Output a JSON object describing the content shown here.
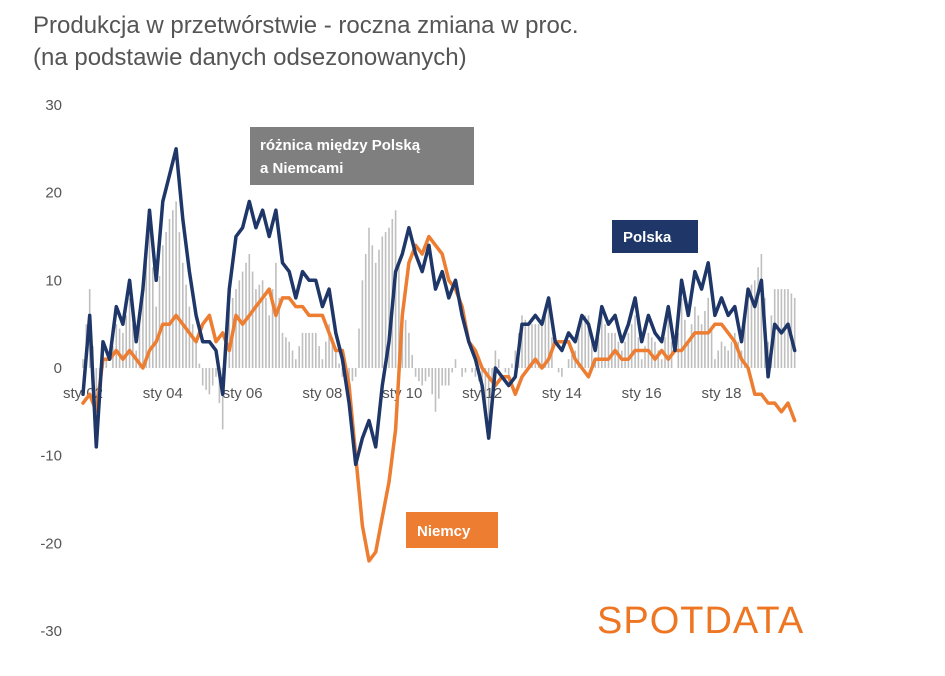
{
  "title_line1": "Produkcja w przetwórstwie - roczna zmiana w proc.",
  "title_line2": "(na podstawie danych odsezonowanych)",
  "logo": "SPOTDATA",
  "chart_data": {
    "type": "line",
    "title": "Produkcja w przetwórstwie - roczna zmiana w proc.",
    "subtitle": "(na podstawie danych odsezonowanych)",
    "ylim": [
      -30,
      30
    ],
    "yticks": [
      30,
      20,
      10,
      0,
      -10,
      -20,
      -30
    ],
    "x_tick_labels": [
      "sty 02",
      "sty 04",
      "sty 06",
      "sty 08",
      "sty 10",
      "sty 12",
      "sty 14",
      "sty 16",
      "sty 18"
    ],
    "x_tick_years": [
      2002,
      2004,
      2006,
      2008,
      2010,
      2012,
      2014,
      2016,
      2018
    ],
    "x_range": [
      "2002-01",
      "2020-03"
    ],
    "grid": false,
    "annotations": [
      {
        "text": "różnica między Polską a Niemcami",
        "lines": [
          "różnica między Polską",
          "a Niemcami"
        ],
        "color": "#7f7f7f"
      },
      {
        "text": "Polska",
        "color": "#1f3768"
      },
      {
        "text": "Niemcy",
        "color": "#ed7d31"
      }
    ],
    "series": [
      {
        "name": "Polska",
        "color": "#1f3768",
        "type": "line",
        "points": [
          [
            "2002-01",
            -3
          ],
          [
            "2002-03",
            6
          ],
          [
            "2002-05",
            -9
          ],
          [
            "2002-07",
            3
          ],
          [
            "2002-09",
            1
          ],
          [
            "2002-11",
            7
          ],
          [
            "2003-01",
            5
          ],
          [
            "2003-03",
            10
          ],
          [
            "2003-05",
            3
          ],
          [
            "2003-07",
            9
          ],
          [
            "2003-09",
            18
          ],
          [
            "2003-11",
            10
          ],
          [
            "2004-01",
            19
          ],
          [
            "2004-03",
            22
          ],
          [
            "2004-05",
            25
          ],
          [
            "2004-07",
            17
          ],
          [
            "2004-09",
            11
          ],
          [
            "2004-11",
            6
          ],
          [
            "2005-01",
            3
          ],
          [
            "2005-03",
            3
          ],
          [
            "2005-05",
            2
          ],
          [
            "2005-07",
            -3
          ],
          [
            "2005-09",
            9
          ],
          [
            "2005-11",
            15
          ],
          [
            "2006-01",
            16
          ],
          [
            "2006-03",
            19
          ],
          [
            "2006-05",
            16
          ],
          [
            "2006-07",
            18
          ],
          [
            "2006-09",
            15
          ],
          [
            "2006-11",
            18
          ],
          [
            "2007-01",
            12
          ],
          [
            "2007-03",
            11
          ],
          [
            "2007-05",
            8
          ],
          [
            "2007-07",
            11
          ],
          [
            "2007-09",
            10
          ],
          [
            "2007-11",
            10
          ],
          [
            "2008-01",
            7
          ],
          [
            "2008-03",
            9
          ],
          [
            "2008-05",
            4
          ],
          [
            "2008-07",
            1
          ],
          [
            "2008-09",
            -4
          ],
          [
            "2008-11",
            -11
          ],
          [
            "2009-01",
            -8
          ],
          [
            "2009-03",
            -6
          ],
          [
            "2009-05",
            -9
          ],
          [
            "2009-07",
            -2
          ],
          [
            "2009-09",
            3
          ],
          [
            "2009-11",
            11
          ],
          [
            "2010-01",
            13
          ],
          [
            "2010-03",
            16
          ],
          [
            "2010-05",
            13
          ],
          [
            "2010-07",
            11
          ],
          [
            "2010-09",
            14
          ],
          [
            "2010-11",
            9
          ],
          [
            "2011-01",
            11
          ],
          [
            "2011-03",
            8
          ],
          [
            "2011-05",
            10
          ],
          [
            "2011-07",
            6
          ],
          [
            "2011-09",
            3
          ],
          [
            "2011-11",
            1
          ],
          [
            "2012-01",
            -2
          ],
          [
            "2012-03",
            -8
          ],
          [
            "2012-05",
            0
          ],
          [
            "2012-07",
            -1
          ],
          [
            "2012-09",
            -2
          ],
          [
            "2012-11",
            -1
          ],
          [
            "2013-01",
            5
          ],
          [
            "2013-03",
            5
          ],
          [
            "2013-05",
            6
          ],
          [
            "2013-07",
            5
          ],
          [
            "2013-09",
            8
          ],
          [
            "2013-11",
            3
          ],
          [
            "2014-01",
            2
          ],
          [
            "2014-03",
            4
          ],
          [
            "2014-05",
            3
          ],
          [
            "2014-07",
            6
          ],
          [
            "2014-09",
            5
          ],
          [
            "2014-11",
            2
          ],
          [
            "2015-01",
            7
          ],
          [
            "2015-03",
            5
          ],
          [
            "2015-05",
            6
          ],
          [
            "2015-07",
            3
          ],
          [
            "2015-09",
            5
          ],
          [
            "2015-11",
            8
          ],
          [
            "2016-01",
            3
          ],
          [
            "2016-03",
            6
          ],
          [
            "2016-05",
            4
          ],
          [
            "2016-07",
            3
          ],
          [
            "2016-09",
            7
          ],
          [
            "2016-11",
            2
          ],
          [
            "2017-01",
            10
          ],
          [
            "2017-03",
            6
          ],
          [
            "2017-05",
            11
          ],
          [
            "2017-07",
            9
          ],
          [
            "2017-09",
            12
          ],
          [
            "2017-11",
            6
          ],
          [
            "2018-01",
            8
          ],
          [
            "2018-03",
            6
          ],
          [
            "2018-05",
            7
          ],
          [
            "2018-07",
            3
          ],
          [
            "2018-09",
            9
          ],
          [
            "2018-11",
            7
          ],
          [
            "2019-01",
            10
          ],
          [
            "2019-03",
            -1
          ],
          [
            "2019-05",
            5
          ],
          [
            "2019-07",
            4
          ],
          [
            "2019-09",
            5
          ],
          [
            "2019-11",
            2
          ]
        ]
      },
      {
        "name": "Niemcy",
        "color": "#ed7d31",
        "type": "line",
        "points": [
          [
            "2002-01",
            -4
          ],
          [
            "2002-03",
            -3
          ],
          [
            "2002-05",
            -5
          ],
          [
            "2002-07",
            1
          ],
          [
            "2002-09",
            1
          ],
          [
            "2002-11",
            2
          ],
          [
            "2003-01",
            1
          ],
          [
            "2003-03",
            2
          ],
          [
            "2003-05",
            1
          ],
          [
            "2003-07",
            0
          ],
          [
            "2003-09",
            2
          ],
          [
            "2003-11",
            3
          ],
          [
            "2004-01",
            5
          ],
          [
            "2004-03",
            5
          ],
          [
            "2004-05",
            6
          ],
          [
            "2004-07",
            5
          ],
          [
            "2004-09",
            4
          ],
          [
            "2004-11",
            3
          ],
          [
            "2005-01",
            5
          ],
          [
            "2005-03",
            6
          ],
          [
            "2005-05",
            3
          ],
          [
            "2005-07",
            4
          ],
          [
            "2005-09",
            2
          ],
          [
            "2005-11",
            6
          ],
          [
            "2006-01",
            5
          ],
          [
            "2006-03",
            6
          ],
          [
            "2006-05",
            7
          ],
          [
            "2006-07",
            8
          ],
          [
            "2006-09",
            9
          ],
          [
            "2006-11",
            6
          ],
          [
            "2007-01",
            8
          ],
          [
            "2007-03",
            8
          ],
          [
            "2007-05",
            7
          ],
          [
            "2007-07",
            7
          ],
          [
            "2007-09",
            6
          ],
          [
            "2007-11",
            6
          ],
          [
            "2008-01",
            6
          ],
          [
            "2008-03",
            4
          ],
          [
            "2008-05",
            2
          ],
          [
            "2008-07",
            2
          ],
          [
            "2008-09",
            -2
          ],
          [
            "2008-11",
            -10
          ],
          [
            "2009-01",
            -18
          ],
          [
            "2009-03",
            -22
          ],
          [
            "2009-05",
            -21
          ],
          [
            "2009-07",
            -17
          ],
          [
            "2009-09",
            -13
          ],
          [
            "2009-11",
            -7
          ],
          [
            "2010-01",
            6
          ],
          [
            "2010-03",
            12
          ],
          [
            "2010-05",
            14
          ],
          [
            "2010-07",
            13
          ],
          [
            "2010-09",
            15
          ],
          [
            "2010-11",
            14
          ],
          [
            "2011-01",
            13
          ],
          [
            "2011-03",
            10
          ],
          [
            "2011-05",
            9
          ],
          [
            "2011-07",
            7
          ],
          [
            "2011-09",
            3
          ],
          [
            "2011-11",
            2
          ],
          [
            "2012-01",
            0
          ],
          [
            "2012-03",
            -1
          ],
          [
            "2012-05",
            -2
          ],
          [
            "2012-07",
            -1
          ],
          [
            "2012-09",
            -1
          ],
          [
            "2012-11",
            -3
          ],
          [
            "2013-01",
            -1
          ],
          [
            "2013-03",
            0
          ],
          [
            "2013-05",
            1
          ],
          [
            "2013-07",
            0
          ],
          [
            "2013-09",
            1
          ],
          [
            "2013-11",
            3
          ],
          [
            "2014-01",
            3
          ],
          [
            "2014-03",
            3
          ],
          [
            "2014-05",
            1
          ],
          [
            "2014-07",
            0
          ],
          [
            "2014-09",
            -1
          ],
          [
            "2014-11",
            1
          ],
          [
            "2015-01",
            1
          ],
          [
            "2015-03",
            1
          ],
          [
            "2015-05",
            2
          ],
          [
            "2015-07",
            1
          ],
          [
            "2015-09",
            1
          ],
          [
            "2015-11",
            2
          ],
          [
            "2016-01",
            2
          ],
          [
            "2016-03",
            2
          ],
          [
            "2016-05",
            1
          ],
          [
            "2016-07",
            2
          ],
          [
            "2016-09",
            1
          ],
          [
            "2016-11",
            2
          ],
          [
            "2017-01",
            2
          ],
          [
            "2017-03",
            3
          ],
          [
            "2017-05",
            4
          ],
          [
            "2017-07",
            4
          ],
          [
            "2017-09",
            4
          ],
          [
            "2017-11",
            5
          ],
          [
            "2018-01",
            5
          ],
          [
            "2018-03",
            4
          ],
          [
            "2018-05",
            3
          ],
          [
            "2018-07",
            1
          ],
          [
            "2018-09",
            0
          ],
          [
            "2018-11",
            -3
          ],
          [
            "2019-01",
            -3
          ],
          [
            "2019-03",
            -4
          ],
          [
            "2019-05",
            -4
          ],
          [
            "2019-07",
            -5
          ],
          [
            "2019-09",
            -4
          ],
          [
            "2019-11",
            -6
          ]
        ]
      }
    ],
    "difference_bars": {
      "name": "różnica między Polską a Niemcami",
      "color": "#bfbfbf",
      "type": "bar",
      "note": "monthly Polska minus Niemcy, drawn as thin gray bars"
    }
  }
}
